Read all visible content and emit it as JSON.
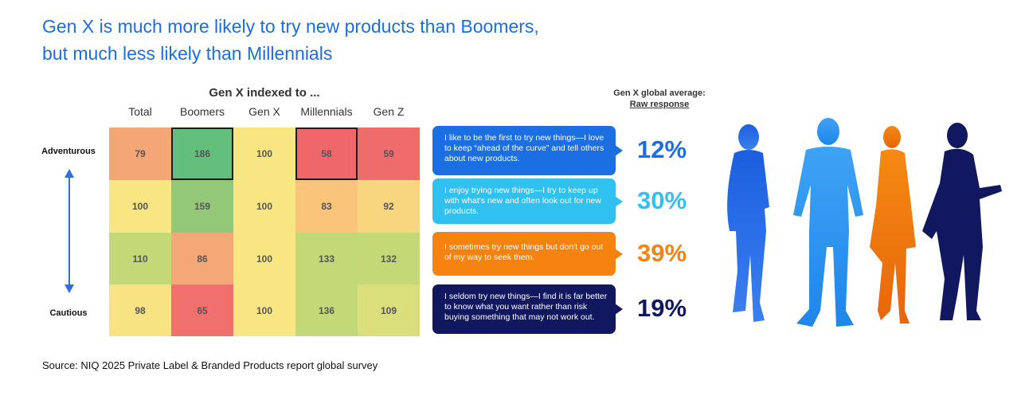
{
  "title": {
    "line1": "Gen X is much more likely to try new products than Boomers,",
    "line2": "but much less likely than Millennials"
  },
  "chart_data": {
    "type": "heatmap",
    "title": "Gen X indexed to ...",
    "columns": [
      "Total",
      "Boomers",
      "Gen X",
      "Millennials",
      "Gen Z"
    ],
    "row_labels": [
      "Adventurous",
      "",
      "",
      "Cautious"
    ],
    "values": [
      [
        79,
        186,
        100,
        58,
        59
      ],
      [
        100,
        159,
        100,
        83,
        92
      ],
      [
        110,
        86,
        100,
        133,
        132
      ],
      [
        98,
        65,
        100,
        136,
        109
      ]
    ],
    "highlighted_cells": [
      [
        0,
        1
      ],
      [
        0,
        3
      ]
    ],
    "colors": [
      [
        "#f4a676",
        "#63be7b",
        "#f8e683",
        "#f0676b",
        "#f06b6c"
      ],
      [
        "#f7e681",
        "#94c879",
        "#f8e683",
        "#fac47a",
        "#f8d680"
      ],
      [
        "#c3d876",
        "#f5a877",
        "#f8e683",
        "#c3d877",
        "#c4d876"
      ],
      [
        "#f7e382",
        "#f0706e",
        "#f8e683",
        "#c3d877",
        "#dadf7c"
      ]
    ]
  },
  "raw_response": {
    "heading_line1": "Gen X global average:",
    "heading_line2": "Raw response",
    "items": [
      {
        "text": "I like to be the first to try new things—I love to keep “ahead of the curve” and tell others about new products.",
        "value": "12%",
        "bubble_color": "#1b6fe3",
        "value_color": "#1b6fe3"
      },
      {
        "text": "I enjoy trying new things—I try to keep up with what's new and often look out for new products.",
        "value": "30%",
        "bubble_color": "#31c1f0",
        "value_color": "#31c1f0"
      },
      {
        "text": "I sometimes try new things but don't go out of my way to seek them.",
        "value": "39%",
        "bubble_color": "#f6820f",
        "value_color": "#f6820f"
      },
      {
        "text": "I seldom try new things—I find it is far better to know what you want rather than risk buying something that may not work out.",
        "value": "19%",
        "bubble_color": "#111860",
        "value_color": "#111860"
      }
    ]
  },
  "source": "Source: NIQ 2025 Private Label & Branded Products report global survey",
  "colors": {
    "title": "#1a6fe0",
    "arrow": "#2f6fe0"
  }
}
